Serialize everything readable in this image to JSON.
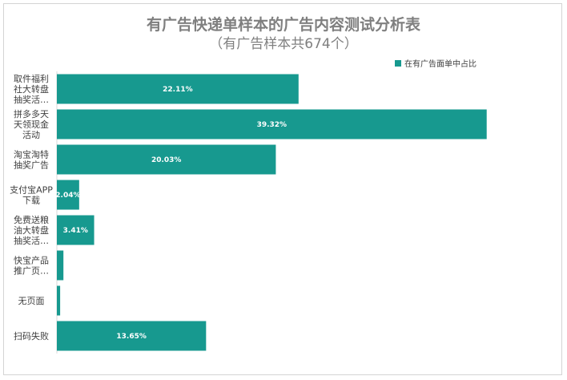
{
  "chart_data": {
    "type": "bar",
    "orientation": "horizontal",
    "title": "有广告快递单样本的广告内容测试分析表",
    "subtitle": "（有广告样本共674个）",
    "categories": [
      [
        "取件福利",
        "社大转盘",
        "抽奖活…"
      ],
      [
        "拼多多天",
        "天领现金",
        "活动"
      ],
      [
        "淘宝淘特",
        "抽奖广告"
      ],
      [
        "支付宝APP",
        "下载"
      ],
      [
        "免费送粮",
        "油大转盘",
        "抽奖活…"
      ],
      [
        "快宝产品",
        "推广页…"
      ],
      [
        "无页面"
      ],
      [
        "扫码失败"
      ]
    ],
    "series": [
      {
        "name": "在有广告面单中占比",
        "values": [
          22.11,
          39.32,
          20.03,
          2.04,
          3.41,
          0.6,
          0.3,
          13.65
        ],
        "labels": [
          "22.11%",
          "39.32%",
          "20.03%",
          "2.04%",
          "3.41%",
          "",
          "",
          "13.65%"
        ]
      }
    ],
    "xlim": [
      0,
      40
    ],
    "grid": false,
    "legend_position": "top-right",
    "bar_color": "#17998f"
  }
}
